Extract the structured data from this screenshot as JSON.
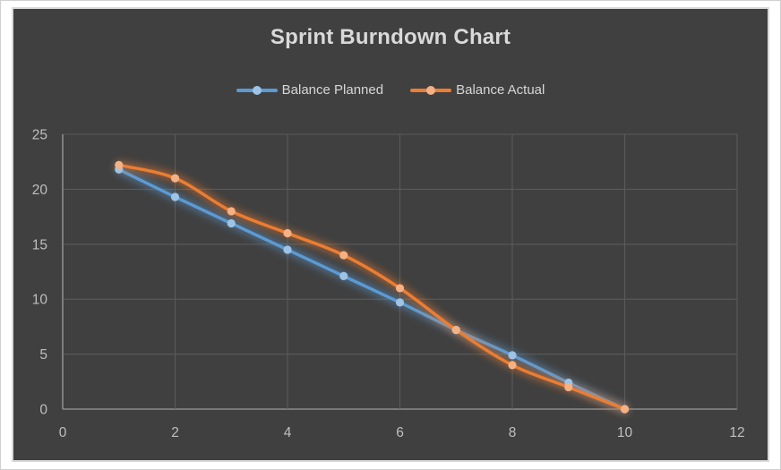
{
  "chart_data": {
    "type": "line",
    "title": "Sprint Burndown Chart",
    "x": [
      1,
      2,
      3,
      4,
      5,
      6,
      7,
      8,
      9,
      10
    ],
    "series": [
      {
        "name": "Balance Planned",
        "color": "#5B9BD5",
        "marker_color": "#9DC3E6",
        "values": [
          21.8,
          19.3,
          16.9,
          14.5,
          12.1,
          9.7,
          7.2,
          4.9,
          2.4,
          0
        ]
      },
      {
        "name": "Balance Actual",
        "color": "#ED7D31",
        "marker_color": "#F4B183",
        "values": [
          22.2,
          21,
          18,
          16,
          14,
          11,
          7.2,
          4,
          2,
          0
        ]
      }
    ],
    "xlabel": "",
    "ylabel": "",
    "xlim": [
      0,
      12
    ],
    "ylim": [
      0,
      25
    ],
    "x_ticks": [
      0,
      2,
      4,
      6,
      8,
      10,
      12
    ],
    "y_ticks": [
      0,
      5,
      10,
      15,
      20,
      25
    ],
    "grid": true,
    "legend_position": "top",
    "line_style": "smooth-with-glow",
    "colors": {
      "chart_background": "#404040",
      "chart_border": "#D9D9D9",
      "gridline": "#5A5A5A",
      "axis_line": "#8C8C8C",
      "tick_label": "#BFBFBF",
      "title_text": "#D9D9D9",
      "legend_text": "#D6D6D6"
    }
  }
}
